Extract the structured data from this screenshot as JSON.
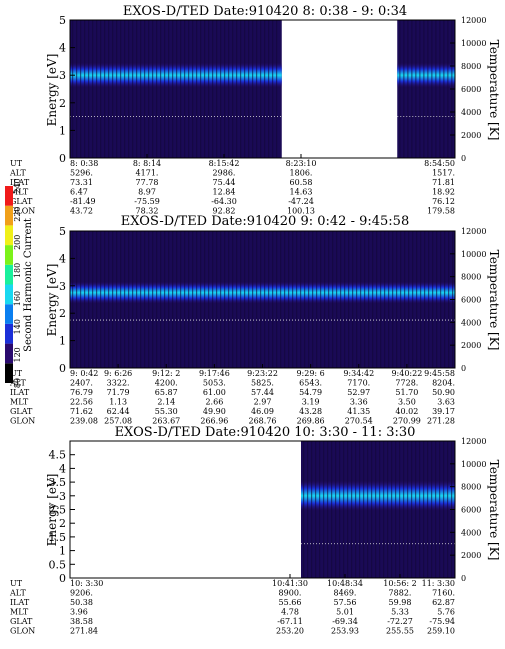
{
  "colors": {
    "background": "#1a0a55",
    "stripe_dark": "#120638",
    "colorbar": [
      "#000000",
      "#2a0a6e",
      "#1b2fd8",
      "#0a7ff0",
      "#19d8f0",
      "#19f09c",
      "#7cf21a",
      "#f0f01a",
      "#f0a01a",
      "#f01a1a"
    ]
  },
  "colorbar": {
    "label": "Second Harmonic Current",
    "ticks": [
      "80",
      "120",
      "140",
      "160",
      "180",
      "200",
      "220",
      "240"
    ]
  },
  "chart_data": [
    {
      "type": "heatmap",
      "title": "EXOS-D/TED   Date:910420  8: 0:38 - 9: 0:34",
      "ylabel": "Energy [eV]",
      "y2label": "Temperature [K]",
      "ylim": [
        0,
        5
      ],
      "y_ticks": [
        "0",
        "1",
        "2",
        "3",
        "4",
        "5"
      ],
      "y2lim": [
        0,
        12000
      ],
      "y2_ticks": [
        "0",
        "2000",
        "4000",
        "6000",
        "8000",
        "10000",
        "12000"
      ],
      "data_segments": [
        [
          0.0,
          0.55
        ],
        [
          0.85,
          1.0
        ]
      ],
      "band": {
        "center_eV": 3.0,
        "width_eV": 0.9
      },
      "temperature_K": 3600,
      "orbit_rows": [
        {
          "label": "UT",
          "values": [
            "8: 0:38",
            "8: 8:14",
            "8:15:42",
            "8:23:10",
            "",
            "8:54:50"
          ]
        },
        {
          "label": "ALT",
          "values": [
            "5296.",
            "4171.",
            "2986.",
            "1806.",
            "",
            "1517."
          ]
        },
        {
          "label": "ILAT",
          "values": [
            "73.31",
            "77.78",
            "75.44",
            "60.58",
            "",
            "71.81"
          ]
        },
        {
          "label": "MLT",
          "values": [
            "6.47",
            "8.97",
            "12.84",
            "14.63",
            "",
            "18.92"
          ]
        },
        {
          "label": "GLAT",
          "values": [
            "-81.49",
            "-75.59",
            "-64.30",
            "-47.24",
            "",
            "76.12"
          ]
        },
        {
          "label": "GLON",
          "values": [
            "43.72",
            "78.32",
            "92.82",
            "100.13",
            "",
            "179.58"
          ]
        }
      ]
    },
    {
      "type": "heatmap",
      "title": "EXOS-D/TED   Date:910420  9: 0:42 - 9:45:58",
      "ylabel": "Energy [eV]",
      "y2label": "Temperature [K]",
      "ylim": [
        0,
        5
      ],
      "y_ticks": [
        "0",
        "1",
        "2",
        "3",
        "4",
        "5"
      ],
      "y2lim": [
        0,
        12000
      ],
      "y2_ticks": [
        "0",
        "2000",
        "4000",
        "6000",
        "8000",
        "10000",
        "12000"
      ],
      "data_segments": [
        [
          0.0,
          1.0
        ]
      ],
      "band": {
        "center_eV": 2.75,
        "width_eV": 0.8
      },
      "temperature_K": 4200,
      "orbit_rows": [
        {
          "label": "UT",
          "values": [
            "9: 0:42",
            "9: 6:26",
            "9:12: 2",
            "9:17:46",
            "9:23:22",
            "9:29: 6",
            "9:34:42",
            "9:40:22",
            "9:45:58"
          ]
        },
        {
          "label": "ALT",
          "values": [
            "2407.",
            "3322.",
            "4200.",
            "5053.",
            "5825.",
            "6543.",
            "7170.",
            "7728.",
            "8204."
          ]
        },
        {
          "label": "ILAT",
          "values": [
            "76.79",
            "71.79",
            "65.87",
            "61.00",
            "57.44",
            "54.79",
            "52.97",
            "51.70",
            "50.90"
          ]
        },
        {
          "label": "MLT",
          "values": [
            "22.56",
            "1.13",
            "2.14",
            "2.66",
            "2.97",
            "3.19",
            "3.36",
            "3.50",
            "3.63"
          ]
        },
        {
          "label": "GLAT",
          "values": [
            "71.62",
            "62.44",
            "55.30",
            "49.90",
            "46.09",
            "43.28",
            "41.35",
            "40.02",
            "39.17"
          ]
        },
        {
          "label": "GLON",
          "values": [
            "239.08",
            "257.08",
            "263.67",
            "266.96",
            "268.76",
            "269.86",
            "270.54",
            "270.99",
            "271.28"
          ]
        }
      ]
    },
    {
      "type": "heatmap",
      "title": "EXOS-D/TED   Date:910420  10: 3:30 - 11: 3:30",
      "ylabel": "Energy [eV]",
      "y2label": "Temperature [K]",
      "ylim": [
        0,
        5
      ],
      "y_ticks": [
        "0",
        "0.5",
        "1",
        "1.5",
        "2",
        "2.5",
        "3",
        "3.5",
        "4",
        "4.5"
      ],
      "y2lim": [
        0,
        12000
      ],
      "y2_ticks": [
        "0",
        "2000",
        "4000",
        "6000",
        "8000",
        "10000",
        "12000"
      ],
      "data_segments": [
        [
          0.6,
          1.0
        ]
      ],
      "band": {
        "center_eV": 3.0,
        "width_eV": 1.1
      },
      "temperature_K": 3000,
      "orbit_rows": [
        {
          "label": "UT",
          "values": [
            "10: 3:30",
            "",
            "",
            "",
            "10:41:30",
            "10:48:34",
            "10:56: 2",
            "11: 3:30"
          ]
        },
        {
          "label": "ALT",
          "values": [
            "9206.",
            "",
            "",
            "",
            "8900.",
            "8469.",
            "7882.",
            "7160."
          ]
        },
        {
          "label": "ILAT",
          "values": [
            "50.38",
            "",
            "",
            "",
            "55.66",
            "57.56",
            "59.98",
            "62.87"
          ]
        },
        {
          "label": "MLT",
          "values": [
            "3.96",
            "",
            "",
            "",
            "4.78",
            "5.01",
            "5.33",
            "5.76"
          ]
        },
        {
          "label": "GLAT",
          "values": [
            "38.58",
            "",
            "",
            "",
            "-67.11",
            "-69.34",
            "-72.27",
            "-75.94"
          ]
        },
        {
          "label": "GLON",
          "values": [
            "271.84",
            "",
            "",
            "",
            "253.20",
            "253.93",
            "255.55",
            "259.10"
          ]
        }
      ]
    }
  ]
}
